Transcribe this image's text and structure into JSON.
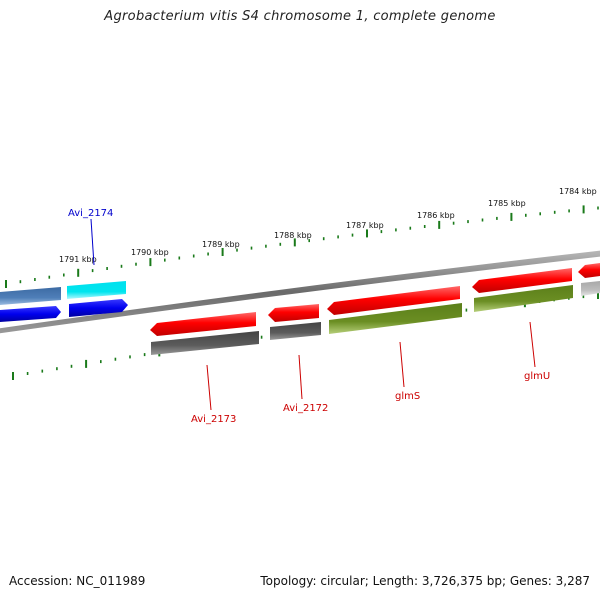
{
  "title": "Agrobacterium vitis S4 chromosome 1, complete genome",
  "footer": {
    "accession": "Accession: NC_011989",
    "summary": "Topology: circular; Length: 3,726,375 bp; Genes: 3,287"
  },
  "scale_labels": [
    "1791 kbp",
    "1790 kbp",
    "1789 kbp",
    "1788 kbp",
    "1787 kbp",
    "1786 kbp",
    "1785 kbp",
    "1784 kbp"
  ],
  "gene_labels": [
    {
      "text": "Avi_2174",
      "color": "#0000cc"
    },
    {
      "text": "Avi_2173",
      "color": "#cc0000"
    },
    {
      "text": "Avi_2172",
      "color": "#cc0000"
    },
    {
      "text": "glmS",
      "color": "#cc0000"
    },
    {
      "text": "glmU",
      "color": "#cc0000"
    }
  ],
  "colors": {
    "backbone": "#808080",
    "red_feature": "#ff0000",
    "dark_gray_feature": "#5a5a5a",
    "olive_feature": "#6b8e23",
    "blue_feature": "#0000ee",
    "steel_feature": "#4f7fb8",
    "cyan_feature": "#00e5ee",
    "light_gray_feature": "#bdbdbd",
    "tick": "#1a7a1a"
  }
}
